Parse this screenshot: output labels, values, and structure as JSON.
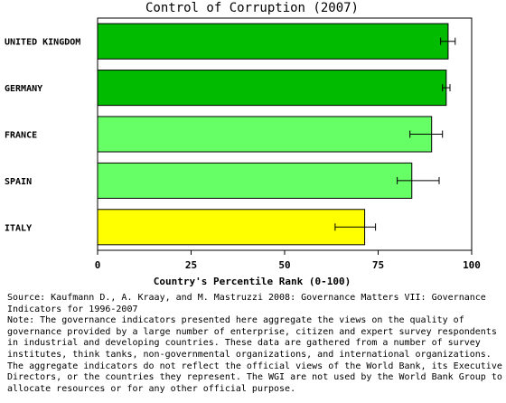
{
  "chart_data": {
    "type": "bar",
    "orientation": "horizontal",
    "title": "Control of Corruption (2007)",
    "xlabel": "Country's Percentile Rank (0-100)",
    "ylabel": "",
    "xlim": [
      0,
      100
    ],
    "xticks": [
      0,
      25,
      50,
      75,
      100
    ],
    "grid": false,
    "categories": [
      "UNITED KINGDOM",
      "GERMANY",
      "FRANCE",
      "SPAIN",
      "ITALY"
    ],
    "values": [
      93.7,
      93.2,
      89.3,
      84.0,
      71.4
    ],
    "error_low": [
      91.7,
      92.2,
      83.5,
      80.1,
      63.5
    ],
    "error_high": [
      95.6,
      94.2,
      92.2,
      91.3,
      74.3
    ],
    "bar_colors": [
      "#00bb00",
      "#00bb00",
      "#66ff66",
      "#66ff66",
      "#ffff00"
    ]
  },
  "notes": {
    "source": "Source: Kaufmann D., A. Kraay, and M. Mastruzzi 2008: Governance Matters VII: Governance Indicators for 1996-2007",
    "note": "Note: The governance indicators presented here aggregate the views on the quality of governance provided by a large number of enterprise, citizen and expert survey respondents in industrial and developing countries. These data are gathered from a number of survey institutes, think tanks, non-governmental organizations, and international organizations. The aggregate indicators do not reflect the official views of the World Bank, its Executive Directors, or the countries they represent. The WGI are not used by the World Bank Group to allocate resources or for any other official purpose."
  }
}
